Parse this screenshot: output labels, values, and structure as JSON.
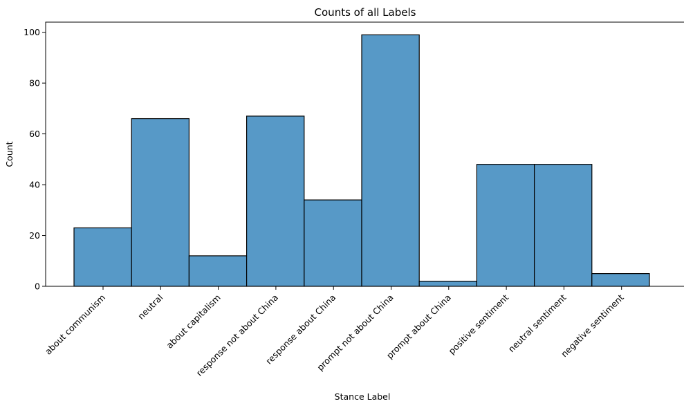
{
  "chart_data": {
    "type": "bar",
    "title": "Counts of all Labels",
    "xlabel": "Stance Label",
    "ylabel": "Count",
    "categories": [
      "about communism",
      "neutral",
      "about capitalism",
      "response not about China",
      "response about China",
      "prompt not about China",
      "prompt about China",
      "positive sentiment",
      "neutral sentiment",
      "negative sentiment"
    ],
    "values": [
      23,
      66,
      12,
      67,
      34,
      99,
      2,
      48,
      48,
      5
    ],
    "ylim": [
      0,
      104
    ],
    "yticks": [
      0,
      20,
      40,
      60,
      80,
      100
    ],
    "grid": false,
    "bar_color": "#5799c7",
    "edge_color": "#000000"
  }
}
